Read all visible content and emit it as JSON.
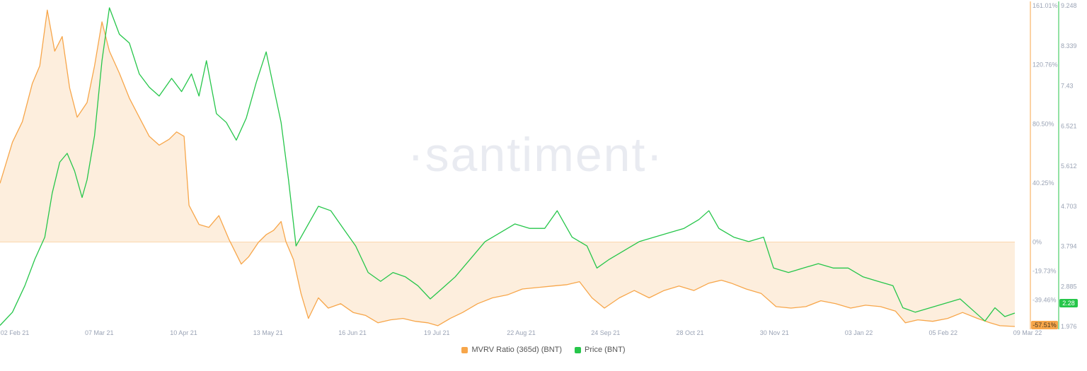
{
  "watermark": "·santiment·",
  "colors": {
    "mvrv": "#f7a64a",
    "mvrv_fill": "#fdeedd",
    "price": "#26c64a",
    "grid": "#eceff4",
    "axis_text": "#9aa3b5"
  },
  "chart_data": {
    "type": "line",
    "x_dates": [
      "2021-01-25",
      "2022-03-09"
    ],
    "x_ticks": [
      "02 Feb 21",
      "07 Mar 21",
      "10 Apr 21",
      "13 May 21",
      "16 Jun 21",
      "19 Jul 21",
      "22 Aug 21",
      "24 Sep 21",
      "28 Oct 21",
      "30 Nov 21",
      "03 Jan 22",
      "05 Feb 22",
      "09 Mar 22"
    ],
    "y_left": {
      "label": "MVRV Ratio (365d) (BNT)",
      "ticks": [
        "161.01%",
        "120.76%",
        "80.50%",
        "40.25%",
        "0%",
        "-19.73%",
        "-39.46%"
      ],
      "ylim": [
        -57.51,
        161.01
      ],
      "current": "-57.51%"
    },
    "y_right": {
      "label": "Price (BNT)",
      "ticks": [
        "9.248",
        "8.339",
        "7.43",
        "6.521",
        "5.612",
        "4.703",
        "3.794",
        "2.885",
        "1.976"
      ],
      "ylim": [
        1.976,
        9.248
      ],
      "current": "2.28"
    },
    "series": [
      {
        "name": "MVRV Ratio (365d) (BNT)",
        "axis": "left",
        "type": "area",
        "points": [
          [
            "2021-01-25",
            40
          ],
          [
            "2021-01-30",
            68
          ],
          [
            "2021-02-03",
            82
          ],
          [
            "2021-02-07",
            108
          ],
          [
            "2021-02-10",
            120
          ],
          [
            "2021-02-13",
            158
          ],
          [
            "2021-02-16",
            130
          ],
          [
            "2021-02-19",
            140
          ],
          [
            "2021-02-22",
            105
          ],
          [
            "2021-02-25",
            85
          ],
          [
            "2021-03-01",
            95
          ],
          [
            "2021-03-04",
            120
          ],
          [
            "2021-03-07",
            150
          ],
          [
            "2021-03-10",
            130
          ],
          [
            "2021-03-14",
            115
          ],
          [
            "2021-03-18",
            98
          ],
          [
            "2021-03-22",
            85
          ],
          [
            "2021-03-26",
            72
          ],
          [
            "2021-03-30",
            66
          ],
          [
            "2021-04-03",
            70
          ],
          [
            "2021-04-06",
            75
          ],
          [
            "2021-04-09",
            72
          ],
          [
            "2021-04-11",
            25
          ],
          [
            "2021-04-15",
            12
          ],
          [
            "2021-04-19",
            10
          ],
          [
            "2021-04-23",
            18
          ],
          [
            "2021-04-27",
            2
          ],
          [
            "2021-05-02",
            -15
          ],
          [
            "2021-05-05",
            -10
          ],
          [
            "2021-05-09",
            0
          ],
          [
            "2021-05-12",
            5
          ],
          [
            "2021-05-15",
            8
          ],
          [
            "2021-05-18",
            14
          ],
          [
            "2021-05-20",
            0
          ],
          [
            "2021-05-23",
            -12
          ],
          [
            "2021-05-26",
            -35
          ],
          [
            "2021-05-29",
            -52
          ],
          [
            "2021-06-02",
            -38
          ],
          [
            "2021-06-06",
            -45
          ],
          [
            "2021-06-11",
            -42
          ],
          [
            "2021-06-16",
            -48
          ],
          [
            "2021-06-21",
            -50
          ],
          [
            "2021-06-26",
            -55
          ],
          [
            "2021-07-01",
            -53
          ],
          [
            "2021-07-06",
            -52
          ],
          [
            "2021-07-11",
            -54
          ],
          [
            "2021-07-16",
            -55
          ],
          [
            "2021-07-20",
            -57
          ],
          [
            "2021-07-25",
            -52
          ],
          [
            "2021-07-30",
            -48
          ],
          [
            "2021-08-05",
            -42
          ],
          [
            "2021-08-11",
            -38
          ],
          [
            "2021-08-17",
            -36
          ],
          [
            "2021-08-23",
            -32
          ],
          [
            "2021-08-29",
            -31
          ],
          [
            "2021-09-04",
            -30
          ],
          [
            "2021-09-10",
            -29
          ],
          [
            "2021-09-15",
            -27
          ],
          [
            "2021-09-20",
            -38
          ],
          [
            "2021-09-25",
            -45
          ],
          [
            "2021-10-01",
            -38
          ],
          [
            "2021-10-07",
            -33
          ],
          [
            "2021-10-13",
            -38
          ],
          [
            "2021-10-19",
            -33
          ],
          [
            "2021-10-25",
            -30
          ],
          [
            "2021-10-31",
            -33
          ],
          [
            "2021-11-06",
            -28
          ],
          [
            "2021-11-11",
            -26
          ],
          [
            "2021-11-15",
            -28
          ],
          [
            "2021-11-21",
            -32
          ],
          [
            "2021-11-27",
            -35
          ],
          [
            "2021-12-03",
            -44
          ],
          [
            "2021-12-09",
            -45
          ],
          [
            "2021-12-15",
            -44
          ],
          [
            "2021-12-21",
            -40
          ],
          [
            "2021-12-27",
            -42
          ],
          [
            "2022-01-02",
            -45
          ],
          [
            "2022-01-08",
            -43
          ],
          [
            "2022-01-14",
            -44
          ],
          [
            "2022-01-20",
            -47
          ],
          [
            "2022-01-24",
            -55
          ],
          [
            "2022-01-29",
            -53
          ],
          [
            "2022-02-04",
            -54
          ],
          [
            "2022-02-10",
            -52
          ],
          [
            "2022-02-16",
            -48
          ],
          [
            "2022-02-22",
            -52
          ],
          [
            "2022-02-27",
            -55
          ],
          [
            "2022-03-03",
            -57
          ],
          [
            "2022-03-09",
            -57.51
          ]
        ]
      },
      {
        "name": "Price (BNT)",
        "axis": "right",
        "type": "line",
        "points": [
          [
            "2021-01-25",
            2.0
          ],
          [
            "2021-01-30",
            2.3
          ],
          [
            "2021-02-04",
            2.9
          ],
          [
            "2021-02-08",
            3.5
          ],
          [
            "2021-02-12",
            4.0
          ],
          [
            "2021-02-15",
            5.0
          ],
          [
            "2021-02-18",
            5.7
          ],
          [
            "2021-02-21",
            5.9
          ],
          [
            "2021-02-24",
            5.5
          ],
          [
            "2021-02-27",
            4.9
          ],
          [
            "2021-03-01",
            5.3
          ],
          [
            "2021-03-04",
            6.3
          ],
          [
            "2021-03-07",
            8.0
          ],
          [
            "2021-03-10",
            9.2
          ],
          [
            "2021-03-14",
            8.6
          ],
          [
            "2021-03-18",
            8.4
          ],
          [
            "2021-03-22",
            7.7
          ],
          [
            "2021-03-26",
            7.4
          ],
          [
            "2021-03-30",
            7.2
          ],
          [
            "2021-04-04",
            7.6
          ],
          [
            "2021-04-08",
            7.3
          ],
          [
            "2021-04-12",
            7.7
          ],
          [
            "2021-04-15",
            7.2
          ],
          [
            "2021-04-18",
            8.0
          ],
          [
            "2021-04-22",
            6.8
          ],
          [
            "2021-04-26",
            6.6
          ],
          [
            "2021-04-30",
            6.2
          ],
          [
            "2021-05-04",
            6.7
          ],
          [
            "2021-05-08",
            7.5
          ],
          [
            "2021-05-12",
            8.2
          ],
          [
            "2021-05-15",
            7.4
          ],
          [
            "2021-05-18",
            6.6
          ],
          [
            "2021-05-21",
            5.3
          ],
          [
            "2021-05-24",
            3.8
          ],
          [
            "2021-05-28",
            4.2
          ],
          [
            "2021-06-02",
            4.7
          ],
          [
            "2021-06-07",
            4.6
          ],
          [
            "2021-06-12",
            4.2
          ],
          [
            "2021-06-17",
            3.8
          ],
          [
            "2021-06-22",
            3.2
          ],
          [
            "2021-06-27",
            3.0
          ],
          [
            "2021-07-02",
            3.2
          ],
          [
            "2021-07-07",
            3.1
          ],
          [
            "2021-07-12",
            2.9
          ],
          [
            "2021-07-17",
            2.6
          ],
          [
            "2021-07-21",
            2.8
          ],
          [
            "2021-07-27",
            3.1
          ],
          [
            "2021-08-02",
            3.5
          ],
          [
            "2021-08-08",
            3.9
          ],
          [
            "2021-08-14",
            4.1
          ],
          [
            "2021-08-20",
            4.3
          ],
          [
            "2021-08-26",
            4.2
          ],
          [
            "2021-09-01",
            4.2
          ],
          [
            "2021-09-06",
            4.6
          ],
          [
            "2021-09-12",
            4.0
          ],
          [
            "2021-09-18",
            3.8
          ],
          [
            "2021-09-22",
            3.3
          ],
          [
            "2021-09-27",
            3.5
          ],
          [
            "2021-10-03",
            3.7
          ],
          [
            "2021-10-09",
            3.9
          ],
          [
            "2021-10-15",
            4.0
          ],
          [
            "2021-10-21",
            4.1
          ],
          [
            "2021-10-27",
            4.2
          ],
          [
            "2021-11-02",
            4.4
          ],
          [
            "2021-11-06",
            4.6
          ],
          [
            "2021-11-10",
            4.2
          ],
          [
            "2021-11-16",
            4.0
          ],
          [
            "2021-11-22",
            3.9
          ],
          [
            "2021-11-28",
            4.0
          ],
          [
            "2021-12-02",
            3.3
          ],
          [
            "2021-12-08",
            3.2
          ],
          [
            "2021-12-14",
            3.3
          ],
          [
            "2021-12-20",
            3.4
          ],
          [
            "2021-12-26",
            3.3
          ],
          [
            "2022-01-01",
            3.3
          ],
          [
            "2022-01-07",
            3.1
          ],
          [
            "2022-01-13",
            3.0
          ],
          [
            "2022-01-19",
            2.9
          ],
          [
            "2022-01-23",
            2.4
          ],
          [
            "2022-01-28",
            2.3
          ],
          [
            "2022-02-03",
            2.4
          ],
          [
            "2022-02-09",
            2.5
          ],
          [
            "2022-02-15",
            2.6
          ],
          [
            "2022-02-21",
            2.3
          ],
          [
            "2022-02-25",
            2.1
          ],
          [
            "2022-03-01",
            2.4
          ],
          [
            "2022-03-05",
            2.2
          ],
          [
            "2022-03-09",
            2.28
          ]
        ]
      }
    ],
    "grid": false,
    "legend_position": "bottom-center"
  }
}
